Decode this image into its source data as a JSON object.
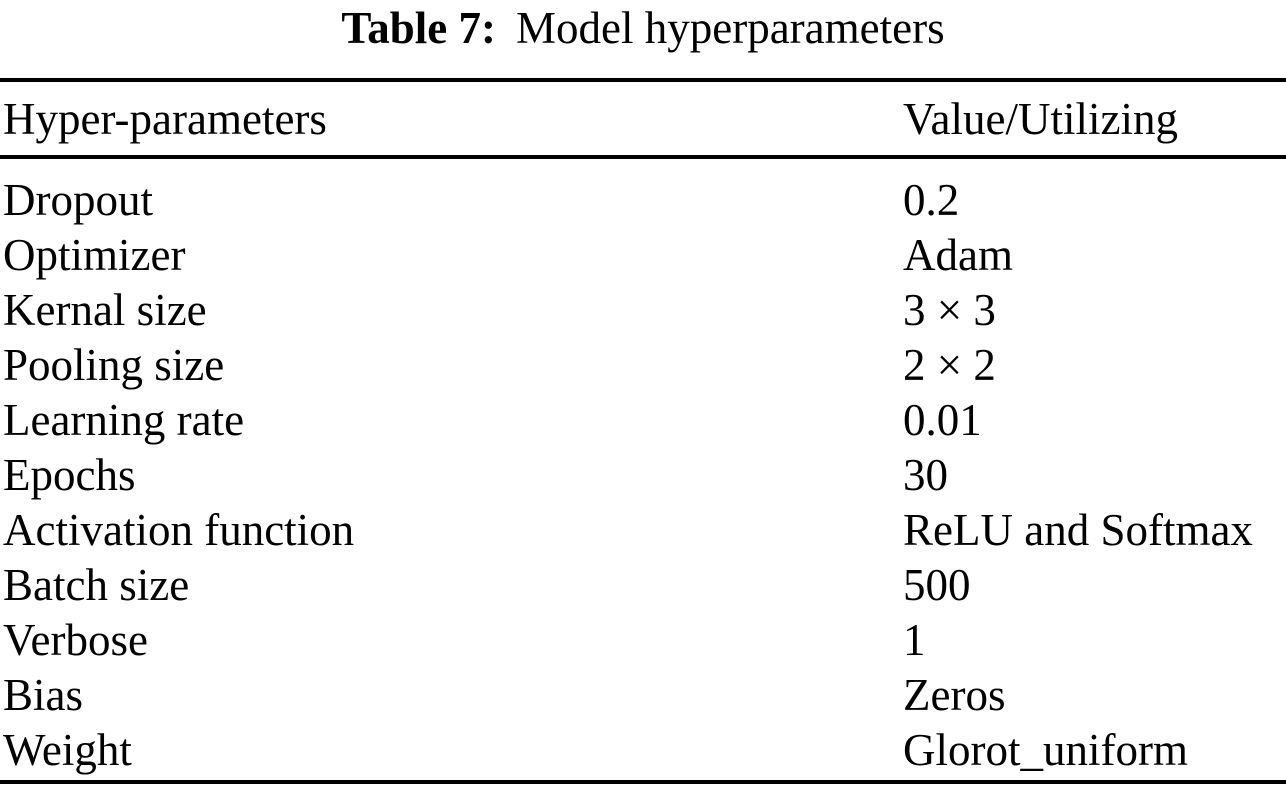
{
  "caption": {
    "label": "Table 7:",
    "text": "Model hyperparameters"
  },
  "table": {
    "columns": [
      "Hyper-parameters",
      "Value/Utilizing"
    ],
    "rows": [
      {
        "param": "Dropout",
        "value": "0.2"
      },
      {
        "param": "Optimizer",
        "value": "Adam"
      },
      {
        "param": "Kernal size",
        "value": "3 × 3"
      },
      {
        "param": "Pooling size",
        "value": "2 × 2"
      },
      {
        "param": "Learning rate",
        "value": "0.01"
      },
      {
        "param": "Epochs",
        "value": "30"
      },
      {
        "param": "Activation function",
        "value": "ReLU and Softmax"
      },
      {
        "param": "Batch size",
        "value": "500"
      },
      {
        "param": "Verbose",
        "value": "1"
      },
      {
        "param": "Bias",
        "value": "Zeros"
      },
      {
        "param": "Weight",
        "value": "Glorot_uniform"
      }
    ]
  },
  "colors": {
    "text": "#000000",
    "background": "#ffffff",
    "rule": "#000000"
  }
}
